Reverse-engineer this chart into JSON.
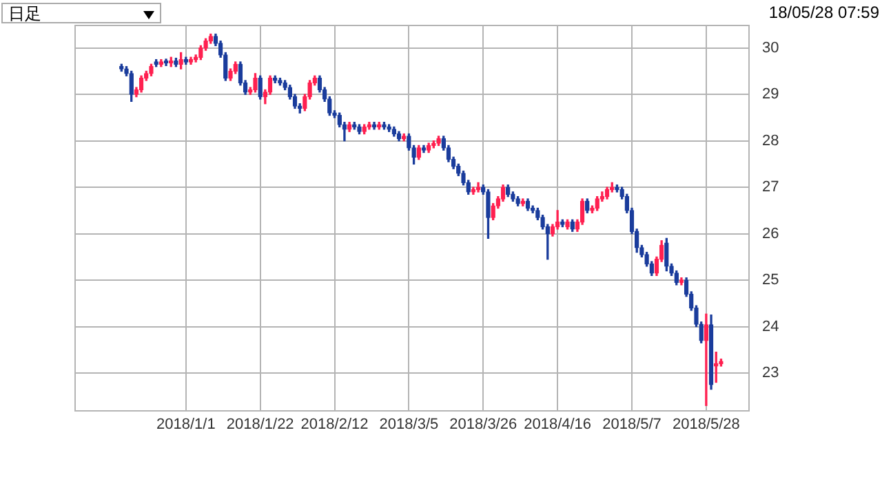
{
  "chart_data": {
    "type": "candlestick",
    "annotations": [
      "日足",
      "18/05/28 07:59"
    ],
    "categories": [
      null,
      null,
      null,
      null,
      null,
      null,
      null,
      null,
      null,
      null,
      null,
      null,
      null,
      null,
      null,
      null,
      null,
      null,
      null,
      null,
      null,
      null,
      "2018/1/1",
      null,
      null,
      null,
      null,
      null,
      null,
      null,
      null,
      null,
      null,
      null,
      null,
      null,
      null,
      "2018/1/22",
      null,
      null,
      null,
      null,
      null,
      null,
      null,
      null,
      null,
      null,
      null,
      null,
      null,
      null,
      "2018/2/12",
      null,
      null,
      null,
      null,
      null,
      null,
      null,
      null,
      null,
      null,
      null,
      null,
      null,
      null,
      "2018/3/5",
      null,
      null,
      null,
      null,
      null,
      null,
      null,
      null,
      null,
      null,
      null,
      null,
      null,
      null,
      "2018/3/26",
      null,
      null,
      null,
      null,
      null,
      null,
      null,
      null,
      null,
      null,
      null,
      null,
      null,
      null,
      "2018/4/16",
      null,
      null,
      null,
      null,
      null,
      null,
      null,
      null,
      null,
      null,
      null,
      null,
      null,
      null,
      "2018/5/7",
      null,
      null,
      null,
      null,
      null,
      null,
      null,
      null,
      null,
      null,
      null,
      null,
      null,
      null,
      "2018/5/28",
      null,
      null,
      null,
      null,
      null,
      null,
      null,
      null
    ],
    "ohlc": [
      null,
      null,
      null,
      null,
      null,
      null,
      null,
      null,
      null,
      [
        29.6,
        29.65,
        29.5,
        29.55
      ],
      [
        29.55,
        29.6,
        29.4,
        29.45
      ],
      [
        29.45,
        29.5,
        28.85,
        29.0
      ],
      [
        29.0,
        29.15,
        28.95,
        29.1
      ],
      [
        29.1,
        29.4,
        29.05,
        29.35
      ],
      [
        29.35,
        29.5,
        29.3,
        29.45
      ],
      [
        29.45,
        29.65,
        29.4,
        29.6
      ],
      [
        29.7,
        29.75,
        29.6,
        29.65
      ],
      [
        29.65,
        29.75,
        29.6,
        29.7
      ],
      [
        29.72,
        29.76,
        29.62,
        29.68
      ],
      [
        29.68,
        29.8,
        29.6,
        29.72
      ],
      [
        29.72,
        29.78,
        29.6,
        29.65
      ],
      [
        29.65,
        29.9,
        29.55,
        29.75
      ],
      [
        29.75,
        29.8,
        29.65,
        29.7
      ],
      [
        29.7,
        29.8,
        29.65,
        29.75
      ],
      [
        29.75,
        29.85,
        29.7,
        29.8
      ],
      [
        29.8,
        30.05,
        29.75,
        30.0
      ],
      [
        30.0,
        30.2,
        29.95,
        30.15
      ],
      [
        30.15,
        30.3,
        30.1,
        30.25
      ],
      [
        30.25,
        30.3,
        30.05,
        30.1
      ],
      [
        30.1,
        30.15,
        29.8,
        29.85
      ],
      [
        29.85,
        29.9,
        29.3,
        29.35
      ],
      [
        29.35,
        29.55,
        29.3,
        29.5
      ],
      [
        29.5,
        29.7,
        29.45,
        29.65
      ],
      [
        29.65,
        29.7,
        29.2,
        29.25
      ],
      [
        29.25,
        29.3,
        29.0,
        29.05
      ],
      [
        29.05,
        29.15,
        29.0,
        29.1
      ],
      [
        29.1,
        29.45,
        29.05,
        29.35
      ],
      [
        29.35,
        29.4,
        28.9,
        28.95
      ],
      [
        28.95,
        29.1,
        28.8,
        29.05
      ],
      [
        29.05,
        29.4,
        29.0,
        29.35
      ],
      [
        29.35,
        29.4,
        29.25,
        29.3
      ],
      [
        29.3,
        29.35,
        29.2,
        29.25
      ],
      [
        29.25,
        29.3,
        29.1,
        29.15
      ],
      [
        29.15,
        29.2,
        28.9,
        28.95
      ],
      [
        28.95,
        29.0,
        28.7,
        28.75
      ],
      [
        28.75,
        28.8,
        28.6,
        28.7
      ],
      [
        28.7,
        29.0,
        28.65,
        28.95
      ],
      [
        28.95,
        29.3,
        28.9,
        29.25
      ],
      [
        29.25,
        29.4,
        29.2,
        29.35
      ],
      [
        29.35,
        29.4,
        29.05,
        29.1
      ],
      [
        29.1,
        29.15,
        28.85,
        28.9
      ],
      [
        28.9,
        28.95,
        28.55,
        28.6
      ],
      [
        28.6,
        28.65,
        28.5,
        28.55
      ],
      [
        28.55,
        28.6,
        28.3,
        28.35
      ],
      [
        28.35,
        28.4,
        28.0,
        28.25
      ],
      [
        28.25,
        28.4,
        28.2,
        28.35
      ],
      [
        28.35,
        28.4,
        28.25,
        28.3
      ],
      [
        28.3,
        28.35,
        28.15,
        28.2
      ],
      [
        28.2,
        28.35,
        28.15,
        28.3
      ],
      [
        28.3,
        28.4,
        28.25,
        28.35
      ],
      [
        28.35,
        28.4,
        28.25,
        28.3
      ],
      [
        28.3,
        28.4,
        28.25,
        28.35
      ],
      [
        28.35,
        28.4,
        28.25,
        28.3
      ],
      [
        28.3,
        28.35,
        28.2,
        28.25
      ],
      [
        28.25,
        28.3,
        28.1,
        28.15
      ],
      [
        28.15,
        28.2,
        28.0,
        28.05
      ],
      [
        28.05,
        28.15,
        28.0,
        28.1
      ],
      [
        28.1,
        28.15,
        27.8,
        27.85
      ],
      [
        27.85,
        27.9,
        27.5,
        27.65
      ],
      [
        27.65,
        27.9,
        27.6,
        27.85
      ],
      [
        27.85,
        27.9,
        27.75,
        27.8
      ],
      [
        27.8,
        27.95,
        27.75,
        27.9
      ],
      [
        27.9,
        28.0,
        27.85,
        27.95
      ],
      [
        27.95,
        28.1,
        27.9,
        28.05
      ],
      [
        28.05,
        28.1,
        27.8,
        27.85
      ],
      [
        27.85,
        27.9,
        27.55,
        27.6
      ],
      [
        27.6,
        27.65,
        27.4,
        27.45
      ],
      [
        27.45,
        27.5,
        27.25,
        27.3
      ],
      [
        27.3,
        27.35,
        27.05,
        27.1
      ],
      [
        27.1,
        27.15,
        26.85,
        26.9
      ],
      [
        26.9,
        27.0,
        26.85,
        26.95
      ],
      [
        26.95,
        27.1,
        26.9,
        27.0
      ],
      [
        27.0,
        27.05,
        26.85,
        26.9
      ],
      [
        26.9,
        26.95,
        25.9,
        26.35
      ],
      [
        26.35,
        26.65,
        26.3,
        26.6
      ],
      [
        26.6,
        26.8,
        26.55,
        26.75
      ],
      [
        26.75,
        27.05,
        26.7,
        27.0
      ],
      [
        27.0,
        27.05,
        26.8,
        26.85
      ],
      [
        26.85,
        26.9,
        26.7,
        26.75
      ],
      [
        26.75,
        26.8,
        26.6,
        26.65
      ],
      [
        26.65,
        26.75,
        26.6,
        26.7
      ],
      [
        26.7,
        26.75,
        26.5,
        26.55
      ],
      [
        26.55,
        26.6,
        26.45,
        26.5
      ],
      [
        26.5,
        26.55,
        26.3,
        26.35
      ],
      [
        26.35,
        26.4,
        26.1,
        26.15
      ],
      [
        26.15,
        26.2,
        25.45,
        26.0
      ],
      [
        26.0,
        26.2,
        25.95,
        26.15
      ],
      [
        26.15,
        26.5,
        26.1,
        26.25
      ],
      [
        26.25,
        26.3,
        26.15,
        26.2
      ],
      [
        26.15,
        26.3,
        26.1,
        26.25
      ],
      [
        26.25,
        26.3,
        26.05,
        26.1
      ],
      [
        26.1,
        26.3,
        26.05,
        26.25
      ],
      [
        26.25,
        26.75,
        26.2,
        26.7
      ],
      [
        26.7,
        26.75,
        26.45,
        26.5
      ],
      [
        26.5,
        26.6,
        26.45,
        26.55
      ],
      [
        26.55,
        26.8,
        26.5,
        26.75
      ],
      [
        26.75,
        26.9,
        26.7,
        26.8
      ],
      [
        26.8,
        27.0,
        26.75,
        26.95
      ],
      [
        26.95,
        27.1,
        26.9,
        27.0
      ],
      [
        27.0,
        27.05,
        26.9,
        26.95
      ],
      [
        26.95,
        27.0,
        26.75,
        26.8
      ],
      [
        26.8,
        26.85,
        26.45,
        26.5
      ],
      [
        26.5,
        26.55,
        26.0,
        26.05
      ],
      [
        26.05,
        26.1,
        25.6,
        25.7
      ],
      [
        25.7,
        25.75,
        25.5,
        25.55
      ],
      [
        25.55,
        25.6,
        25.3,
        25.35
      ],
      [
        25.35,
        25.4,
        25.1,
        25.15
      ],
      [
        25.15,
        25.5,
        25.1,
        25.45
      ],
      [
        25.45,
        25.85,
        25.4,
        25.75
      ],
      [
        25.8,
        25.9,
        25.2,
        25.3
      ],
      [
        25.3,
        25.35,
        25.1,
        25.15
      ],
      [
        25.15,
        25.2,
        24.9,
        24.95
      ],
      [
        24.95,
        25.05,
        24.9,
        25.0
      ],
      [
        25.0,
        25.05,
        24.65,
        24.7
      ],
      [
        24.7,
        24.75,
        24.35,
        24.4
      ],
      [
        24.4,
        24.45,
        24.0,
        24.05
      ],
      [
        24.05,
        24.1,
        23.65,
        23.7
      ],
      [
        23.7,
        24.27,
        22.3,
        24.04
      ],
      [
        24.04,
        24.25,
        22.65,
        22.75
      ],
      [
        23.15,
        23.45,
        22.8,
        23.2
      ],
      [
        23.2,
        23.3,
        23.15,
        23.25
      ],
      null,
      null,
      null,
      null,
      null
    ],
    "colors": [
      null,
      null,
      null,
      null,
      null,
      null,
      null,
      null,
      null,
      "#1a3c9c",
      "#1a3c9c",
      "#1a3c9c",
      "#ff2050",
      "#ff2050",
      "#ff2050",
      "#ff2050",
      "#1a3c9c",
      "#ff2050",
      "#1a3c9c",
      "#ff2050",
      "#1a3c9c",
      "#ff2050",
      "#1a3c9c",
      "#ff2050",
      "#ff2050",
      "#ff2050",
      "#ff2050",
      "#ff2050",
      "#1a3c9c",
      "#1a3c9c",
      "#1a3c9c",
      "#ff2050",
      "#ff2050",
      "#1a3c9c",
      "#1a3c9c",
      "#ff2050",
      "#ff2050",
      "#1a3c9c",
      "#ff2050",
      "#ff2050",
      "#1a3c9c",
      "#1a3c9c",
      "#1a3c9c",
      "#1a3c9c",
      "#1a3c9c",
      "#1a3c9c",
      "#ff2050",
      "#ff2050",
      "#ff2050",
      "#1a3c9c",
      "#1a3c9c",
      "#1a3c9c",
      "#1a3c9c",
      "#1a3c9c",
      "#1a3c9c",
      "#ff2050",
      "#1a3c9c",
      "#1a3c9c",
      "#ff2050",
      "#ff2050",
      "#1a3c9c",
      "#ff2050",
      "#1a3c9c",
      "#1a3c9c",
      "#1a3c9c",
      "#1a3c9c",
      "#ff2050",
      "#1a3c9c",
      "#1a3c9c",
      "#ff2050",
      "#1a3c9c",
      "#ff2050",
      "#ff2050",
      "#ff2050",
      "#1a3c9c",
      "#1a3c9c",
      "#1a3c9c",
      "#1a3c9c",
      "#1a3c9c",
      "#1a3c9c",
      "#ff2050",
      "#ff2050",
      "#1a3c9c",
      "#1a3c9c",
      "#ff2050",
      "#ff2050",
      "#ff2050",
      "#1a3c9c",
      "#1a3c9c",
      "#1a3c9c",
      "#ff2050",
      "#1a3c9c",
      "#1a3c9c",
      "#1a3c9c",
      "#1a3c9c",
      "#1a3c9c",
      "#ff2050",
      "#ff2050",
      "#1a3c9c",
      "#ff2050",
      "#1a3c9c",
      "#ff2050",
      "#ff2050",
      "#1a3c9c",
      "#ff2050",
      "#ff2050",
      "#ff2050",
      "#ff2050",
      "#ff2050",
      "#1a3c9c",
      "#1a3c9c",
      "#1a3c9c",
      "#1a3c9c",
      "#1a3c9c",
      "#1a3c9c",
      "#1a3c9c",
      "#1a3c9c",
      "#ff2050",
      "#ff2050",
      "#1a3c9c",
      "#1a3c9c",
      "#1a3c9c",
      "#ff2050",
      "#1a3c9c",
      "#1a3c9c",
      "#1a3c9c",
      "#1a3c9c",
      "#ff2050",
      "#1a3c9c",
      "#ff2050",
      "#ff2050",
      null,
      null,
      null,
      null,
      null
    ],
    "ylim": [
      22.2,
      30.5
    ],
    "yticks": [
      23,
      24,
      25,
      26,
      27,
      28,
      29,
      30
    ],
    "grid": true
  }
}
